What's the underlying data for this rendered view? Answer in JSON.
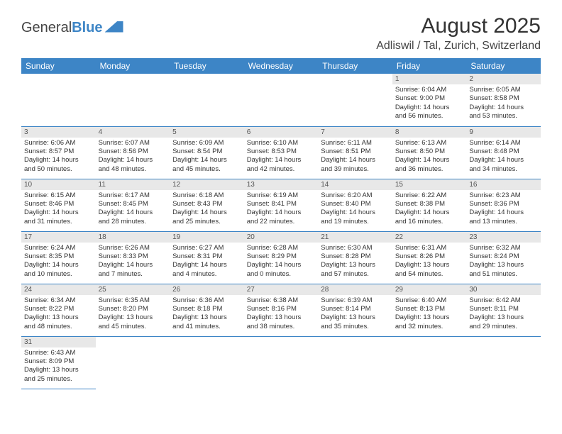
{
  "logo": {
    "text1": "General",
    "text2": "Blue"
  },
  "header": {
    "month_year": "August 2025",
    "location": "Adliswil / Tal, Zurich, Switzerland"
  },
  "columns": [
    "Sunday",
    "Monday",
    "Tuesday",
    "Wednesday",
    "Thursday",
    "Friday",
    "Saturday"
  ],
  "weeks": [
    [
      null,
      null,
      null,
      null,
      null,
      {
        "d": "1",
        "sr": "Sunrise: 6:04 AM",
        "ss": "Sunset: 9:00 PM",
        "dl1": "Daylight: 14 hours",
        "dl2": "and 56 minutes."
      },
      {
        "d": "2",
        "sr": "Sunrise: 6:05 AM",
        "ss": "Sunset: 8:58 PM",
        "dl1": "Daylight: 14 hours",
        "dl2": "and 53 minutes."
      }
    ],
    [
      {
        "d": "3",
        "sr": "Sunrise: 6:06 AM",
        "ss": "Sunset: 8:57 PM",
        "dl1": "Daylight: 14 hours",
        "dl2": "and 50 minutes."
      },
      {
        "d": "4",
        "sr": "Sunrise: 6:07 AM",
        "ss": "Sunset: 8:56 PM",
        "dl1": "Daylight: 14 hours",
        "dl2": "and 48 minutes."
      },
      {
        "d": "5",
        "sr": "Sunrise: 6:09 AM",
        "ss": "Sunset: 8:54 PM",
        "dl1": "Daylight: 14 hours",
        "dl2": "and 45 minutes."
      },
      {
        "d": "6",
        "sr": "Sunrise: 6:10 AM",
        "ss": "Sunset: 8:53 PM",
        "dl1": "Daylight: 14 hours",
        "dl2": "and 42 minutes."
      },
      {
        "d": "7",
        "sr": "Sunrise: 6:11 AM",
        "ss": "Sunset: 8:51 PM",
        "dl1": "Daylight: 14 hours",
        "dl2": "and 39 minutes."
      },
      {
        "d": "8",
        "sr": "Sunrise: 6:13 AM",
        "ss": "Sunset: 8:50 PM",
        "dl1": "Daylight: 14 hours",
        "dl2": "and 36 minutes."
      },
      {
        "d": "9",
        "sr": "Sunrise: 6:14 AM",
        "ss": "Sunset: 8:48 PM",
        "dl1": "Daylight: 14 hours",
        "dl2": "and 34 minutes."
      }
    ],
    [
      {
        "d": "10",
        "sr": "Sunrise: 6:15 AM",
        "ss": "Sunset: 8:46 PM",
        "dl1": "Daylight: 14 hours",
        "dl2": "and 31 minutes."
      },
      {
        "d": "11",
        "sr": "Sunrise: 6:17 AM",
        "ss": "Sunset: 8:45 PM",
        "dl1": "Daylight: 14 hours",
        "dl2": "and 28 minutes."
      },
      {
        "d": "12",
        "sr": "Sunrise: 6:18 AM",
        "ss": "Sunset: 8:43 PM",
        "dl1": "Daylight: 14 hours",
        "dl2": "and 25 minutes."
      },
      {
        "d": "13",
        "sr": "Sunrise: 6:19 AM",
        "ss": "Sunset: 8:41 PM",
        "dl1": "Daylight: 14 hours",
        "dl2": "and 22 minutes."
      },
      {
        "d": "14",
        "sr": "Sunrise: 6:20 AM",
        "ss": "Sunset: 8:40 PM",
        "dl1": "Daylight: 14 hours",
        "dl2": "and 19 minutes."
      },
      {
        "d": "15",
        "sr": "Sunrise: 6:22 AM",
        "ss": "Sunset: 8:38 PM",
        "dl1": "Daylight: 14 hours",
        "dl2": "and 16 minutes."
      },
      {
        "d": "16",
        "sr": "Sunrise: 6:23 AM",
        "ss": "Sunset: 8:36 PM",
        "dl1": "Daylight: 14 hours",
        "dl2": "and 13 minutes."
      }
    ],
    [
      {
        "d": "17",
        "sr": "Sunrise: 6:24 AM",
        "ss": "Sunset: 8:35 PM",
        "dl1": "Daylight: 14 hours",
        "dl2": "and 10 minutes."
      },
      {
        "d": "18",
        "sr": "Sunrise: 6:26 AM",
        "ss": "Sunset: 8:33 PM",
        "dl1": "Daylight: 14 hours",
        "dl2": "and 7 minutes."
      },
      {
        "d": "19",
        "sr": "Sunrise: 6:27 AM",
        "ss": "Sunset: 8:31 PM",
        "dl1": "Daylight: 14 hours",
        "dl2": "and 4 minutes."
      },
      {
        "d": "20",
        "sr": "Sunrise: 6:28 AM",
        "ss": "Sunset: 8:29 PM",
        "dl1": "Daylight: 14 hours",
        "dl2": "and 0 minutes."
      },
      {
        "d": "21",
        "sr": "Sunrise: 6:30 AM",
        "ss": "Sunset: 8:28 PM",
        "dl1": "Daylight: 13 hours",
        "dl2": "and 57 minutes."
      },
      {
        "d": "22",
        "sr": "Sunrise: 6:31 AM",
        "ss": "Sunset: 8:26 PM",
        "dl1": "Daylight: 13 hours",
        "dl2": "and 54 minutes."
      },
      {
        "d": "23",
        "sr": "Sunrise: 6:32 AM",
        "ss": "Sunset: 8:24 PM",
        "dl1": "Daylight: 13 hours",
        "dl2": "and 51 minutes."
      }
    ],
    [
      {
        "d": "24",
        "sr": "Sunrise: 6:34 AM",
        "ss": "Sunset: 8:22 PM",
        "dl1": "Daylight: 13 hours",
        "dl2": "and 48 minutes."
      },
      {
        "d": "25",
        "sr": "Sunrise: 6:35 AM",
        "ss": "Sunset: 8:20 PM",
        "dl1": "Daylight: 13 hours",
        "dl2": "and 45 minutes."
      },
      {
        "d": "26",
        "sr": "Sunrise: 6:36 AM",
        "ss": "Sunset: 8:18 PM",
        "dl1": "Daylight: 13 hours",
        "dl2": "and 41 minutes."
      },
      {
        "d": "27",
        "sr": "Sunrise: 6:38 AM",
        "ss": "Sunset: 8:16 PM",
        "dl1": "Daylight: 13 hours",
        "dl2": "and 38 minutes."
      },
      {
        "d": "28",
        "sr": "Sunrise: 6:39 AM",
        "ss": "Sunset: 8:14 PM",
        "dl1": "Daylight: 13 hours",
        "dl2": "and 35 minutes."
      },
      {
        "d": "29",
        "sr": "Sunrise: 6:40 AM",
        "ss": "Sunset: 8:13 PM",
        "dl1": "Daylight: 13 hours",
        "dl2": "and 32 minutes."
      },
      {
        "d": "30",
        "sr": "Sunrise: 6:42 AM",
        "ss": "Sunset: 8:11 PM",
        "dl1": "Daylight: 13 hours",
        "dl2": "and 29 minutes."
      }
    ],
    [
      {
        "d": "31",
        "sr": "Sunrise: 6:43 AM",
        "ss": "Sunset: 8:09 PM",
        "dl1": "Daylight: 13 hours",
        "dl2": "and 25 minutes."
      },
      null,
      null,
      null,
      null,
      null,
      null
    ]
  ]
}
